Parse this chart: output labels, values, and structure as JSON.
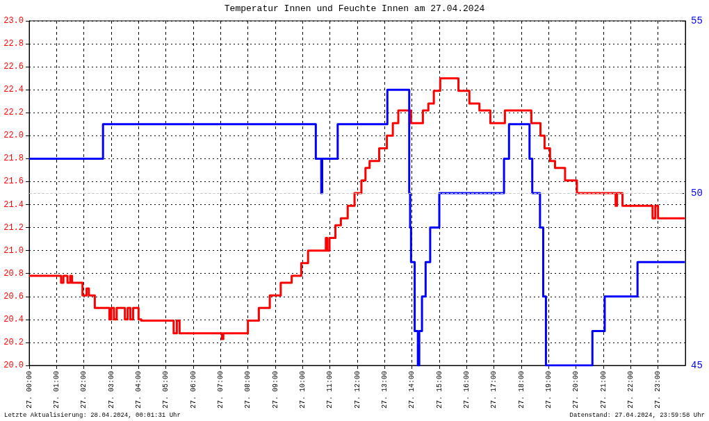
{
  "chart_data": {
    "type": "step",
    "title": "Temperatur Innen und Feuchte Innen am 27.04.2024",
    "xlim": [
      "2024-04-27T00:00",
      "2024-04-28T00:00"
    ],
    "xticks": [
      {
        "value": "2024-04-27T00:00",
        "label": "27. 00:00"
      },
      {
        "value": "2024-04-27T01:00",
        "label": "27. 01:00"
      },
      {
        "value": "2024-04-27T02:00",
        "label": "27. 02:00"
      },
      {
        "value": "2024-04-27T03:00",
        "label": "27. 03:00"
      },
      {
        "value": "2024-04-27T04:00",
        "label": "27. 04:00"
      },
      {
        "value": "2024-04-27T05:00",
        "label": "27. 05:00"
      },
      {
        "value": "2024-04-27T06:00",
        "label": "27. 06:00"
      },
      {
        "value": "2024-04-27T07:00",
        "label": "27. 07:00"
      },
      {
        "value": "2024-04-27T08:00",
        "label": "27. 08:00"
      },
      {
        "value": "2024-04-27T09:00",
        "label": "27. 09:00"
      },
      {
        "value": "2024-04-27T10:00",
        "label": "27. 10:00"
      },
      {
        "value": "2024-04-27T11:00",
        "label": "27. 11:00"
      },
      {
        "value": "2024-04-27T12:00",
        "label": "27. 12:00"
      },
      {
        "value": "2024-04-27T13:00",
        "label": "27. 13:00"
      },
      {
        "value": "2024-04-27T14:00",
        "label": "27. 14:00"
      },
      {
        "value": "2024-04-27T15:00",
        "label": "27. 15:00"
      },
      {
        "value": "2024-04-27T16:00",
        "label": "27. 16:00"
      },
      {
        "value": "2024-04-27T17:00",
        "label": "27. 17:00"
      },
      {
        "value": "2024-04-27T18:00",
        "label": "27. 18:00"
      },
      {
        "value": "2024-04-27T19:00",
        "label": "27. 19:00"
      },
      {
        "value": "2024-04-27T20:00",
        "label": "27. 20:00"
      },
      {
        "value": "2024-04-27T21:00",
        "label": "27. 21:00"
      },
      {
        "value": "2024-04-27T22:00",
        "label": "27. 22:00"
      },
      {
        "value": "2024-04-27T23:00",
        "label": "27. 23:00"
      }
    ],
    "ylim": [
      20.0,
      23.0
    ],
    "yticks": [
      {
        "value": 20.0,
        "label": "20.0"
      },
      {
        "value": 20.2,
        "label": "20.2"
      },
      {
        "value": 20.4,
        "label": "20.4"
      },
      {
        "value": 20.6,
        "label": "20.6"
      },
      {
        "value": 20.8,
        "label": "20.8"
      },
      {
        "value": 21.0,
        "label": "21.0"
      },
      {
        "value": 21.2,
        "label": "21.2"
      },
      {
        "value": 21.4,
        "label": "21.4"
      },
      {
        "value": 21.6,
        "label": "21.6"
      },
      {
        "value": 21.8,
        "label": "21.8"
      },
      {
        "value": 22.0,
        "label": "22.0"
      },
      {
        "value": 22.2,
        "label": "22.2"
      },
      {
        "value": 22.4,
        "label": "22.4"
      },
      {
        "value": 22.6,
        "label": "22.6"
      },
      {
        "value": 22.8,
        "label": "22.8"
      },
      {
        "value": 23.0,
        "label": "23.0"
      }
    ],
    "y2lim": [
      45,
      55
    ],
    "y2ticks": [
      45,
      50,
      55
    ],
    "grid": true,
    "ref_lines": [
      {
        "axis": "y2",
        "value": 50,
        "color": "#c8c8c8",
        "line_style": "dashed"
      }
    ],
    "annotations": [
      "Letzte Aktualisierung: 28.04.2024, 00:01:31 Uhr",
      "Datenstand: 27.04.2024, 23:59:58 Uhr"
    ],
    "series": [
      {
        "color": "#ff0000",
        "x": [
          "2024-04-27T00:00",
          "2024-04-27T01:10",
          "2024-04-27T01:15",
          "2024-04-27T01:24",
          "2024-04-27T01:30",
          "2024-04-27T01:34",
          "2024-04-27T01:57",
          "2024-04-27T02:06",
          "2024-04-27T02:11",
          "2024-04-27T02:24",
          "2024-04-27T02:32",
          "2024-04-27T02:56",
          "2024-04-27T03:00",
          "2024-04-27T03:06",
          "2024-04-27T03:12",
          "2024-04-27T03:30",
          "2024-04-27T03:36",
          "2024-04-27T03:42",
          "2024-04-27T03:48",
          "2024-04-27T04:00",
          "2024-04-27T04:06",
          "2024-04-27T05:17",
          "2024-04-27T05:24",
          "2024-04-27T05:30",
          "2024-04-27T05:39",
          "2024-04-27T07:03",
          "2024-04-27T07:06",
          "2024-04-27T08:00",
          "2024-04-27T08:24",
          "2024-04-27T08:48",
          "2024-04-27T09:12",
          "2024-04-27T09:36",
          "2024-04-27T09:57",
          "2024-04-27T10:12",
          "2024-04-27T10:51",
          "2024-04-27T10:54",
          "2024-04-27T10:59",
          "2024-04-27T11:12",
          "2024-04-27T11:24",
          "2024-04-27T11:39",
          "2024-04-27T11:54",
          "2024-04-27T12:09",
          "2024-04-27T12:18",
          "2024-04-27T12:27",
          "2024-04-27T12:48",
          "2024-04-27T13:05",
          "2024-04-27T13:18",
          "2024-04-27T13:30",
          "2024-04-27T13:58",
          "2024-04-27T14:24",
          "2024-04-27T14:36",
          "2024-04-27T14:48",
          "2024-04-27T15:02",
          "2024-04-27T15:42",
          "2024-04-27T16:06",
          "2024-04-27T16:28",
          "2024-04-27T16:52",
          "2024-04-27T17:24",
          "2024-04-27T18:22",
          "2024-04-27T18:42",
          "2024-04-27T18:51",
          "2024-04-27T19:03",
          "2024-04-27T19:14",
          "2024-04-27T19:36",
          "2024-04-27T20:02",
          "2024-04-27T21:27",
          "2024-04-27T21:30",
          "2024-04-27T21:42",
          "2024-04-27T22:48",
          "2024-04-27T22:54",
          "2024-04-27T23:00",
          "2024-04-27T23:18",
          "2024-04-27T23:59"
        ],
        "values": [
          20.78,
          20.72,
          20.78,
          20.72,
          20.78,
          20.72,
          20.61,
          20.67,
          20.61,
          20.5,
          20.5,
          20.4,
          20.5,
          20.4,
          20.5,
          20.4,
          20.5,
          20.4,
          20.5,
          20.4,
          20.39,
          20.28,
          20.39,
          20.28,
          20.28,
          20.23,
          20.28,
          20.39,
          20.5,
          20.61,
          20.72,
          20.78,
          20.89,
          21.0,
          21.11,
          21.0,
          21.11,
          21.22,
          21.28,
          21.39,
          21.5,
          21.61,
          21.72,
          21.78,
          21.89,
          22.0,
          22.11,
          22.22,
          22.11,
          22.22,
          22.28,
          22.39,
          22.5,
          22.39,
          22.28,
          22.22,
          22.11,
          22.22,
          22.11,
          22.0,
          21.89,
          21.78,
          21.72,
          21.61,
          21.5,
          21.39,
          21.5,
          21.39,
          21.28,
          21.39,
          21.28,
          21.28,
          21.28
        ]
      },
      {
        "color": "#0000ff",
        "axis": "y2",
        "x": [
          "2024-04-27T00:00",
          "2024-04-27T02:42",
          "2024-04-27T10:29",
          "2024-04-27T10:41",
          "2024-04-27T10:43",
          "2024-04-27T11:17",
          "2024-04-27T13:06",
          "2024-04-27T13:54",
          "2024-04-27T13:56",
          "2024-04-27T13:58",
          "2024-04-27T14:00",
          "2024-04-27T14:06",
          "2024-04-27T14:13",
          "2024-04-27T14:16",
          "2024-04-27T14:22",
          "2024-04-27T14:30",
          "2024-04-27T14:40",
          "2024-04-27T15:00",
          "2024-04-27T17:22",
          "2024-04-27T17:33",
          "2024-04-27T18:18",
          "2024-04-27T18:24",
          "2024-04-27T18:41",
          "2024-04-27T18:48",
          "2024-04-27T18:54",
          "2024-04-27T20:36",
          "2024-04-27T21:03",
          "2024-04-27T22:15",
          "2024-04-27T23:59"
        ],
        "values": [
          51.0,
          52.0,
          51.0,
          50.0,
          51.0,
          52.0,
          53.0,
          50.0,
          49.0,
          48.0,
          48.0,
          46.0,
          45.0,
          46.0,
          47.0,
          48.0,
          49.0,
          50.0,
          51.0,
          52.0,
          51.0,
          50.0,
          49.0,
          47.0,
          45.0,
          46.0,
          47.0,
          48.0,
          48.0
        ]
      }
    ]
  }
}
